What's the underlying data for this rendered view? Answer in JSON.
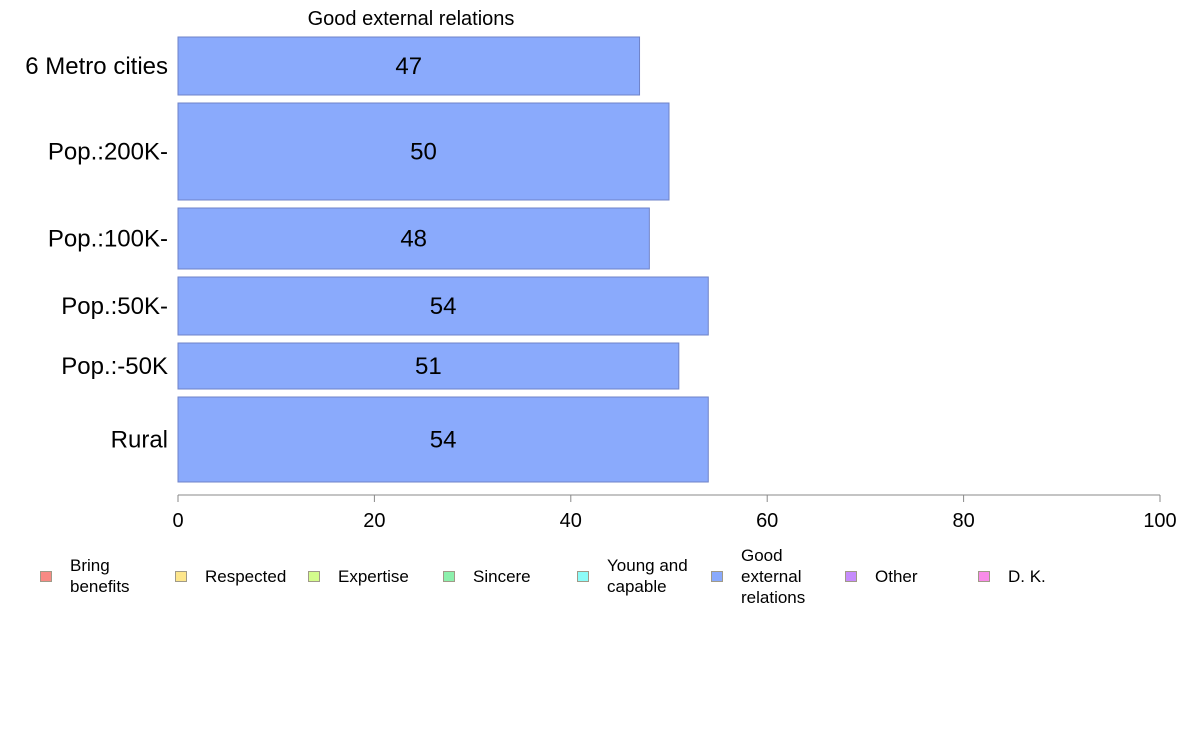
{
  "chart_data": {
    "type": "bar",
    "orientation": "horizontal",
    "title": "Good external relations",
    "categories": [
      "6 Metro cities",
      "Pop.:200K-",
      "Pop.:100K-",
      "Pop.:50K-",
      "Pop.:-50K",
      "Rural"
    ],
    "series": [
      {
        "name": "Good external relations",
        "values": [
          47,
          50,
          48,
          54,
          51,
          54
        ]
      }
    ],
    "data_labels": [
      "47",
      "50",
      "48",
      "54",
      "51",
      "54"
    ],
    "xlim": [
      0,
      100
    ],
    "x_ticks": [
      "0",
      "20",
      "40",
      "60",
      "80",
      "100"
    ],
    "grid": false,
    "bar_color": "#8aaafc",
    "bar_edge_color": "#6f83c8",
    "legend_position": "bottom",
    "legend": [
      {
        "label": "Bring\nbenefits",
        "color": "#f88a84"
      },
      {
        "label": "Respected",
        "color": "#fde68c"
      },
      {
        "label": "Expertise",
        "color": "#d4fc8c"
      },
      {
        "label": "Sincere",
        "color": "#8cf0ac"
      },
      {
        "label": "Young and\ncapable",
        "color": "#8cfcf8"
      },
      {
        "label": "Good\nexternal\nrelations",
        "color": "#8aaafc"
      },
      {
        "label": "Other",
        "color": "#c68cfc"
      },
      {
        "label": "D. K.",
        "color": "#f88ce8"
      }
    ]
  }
}
